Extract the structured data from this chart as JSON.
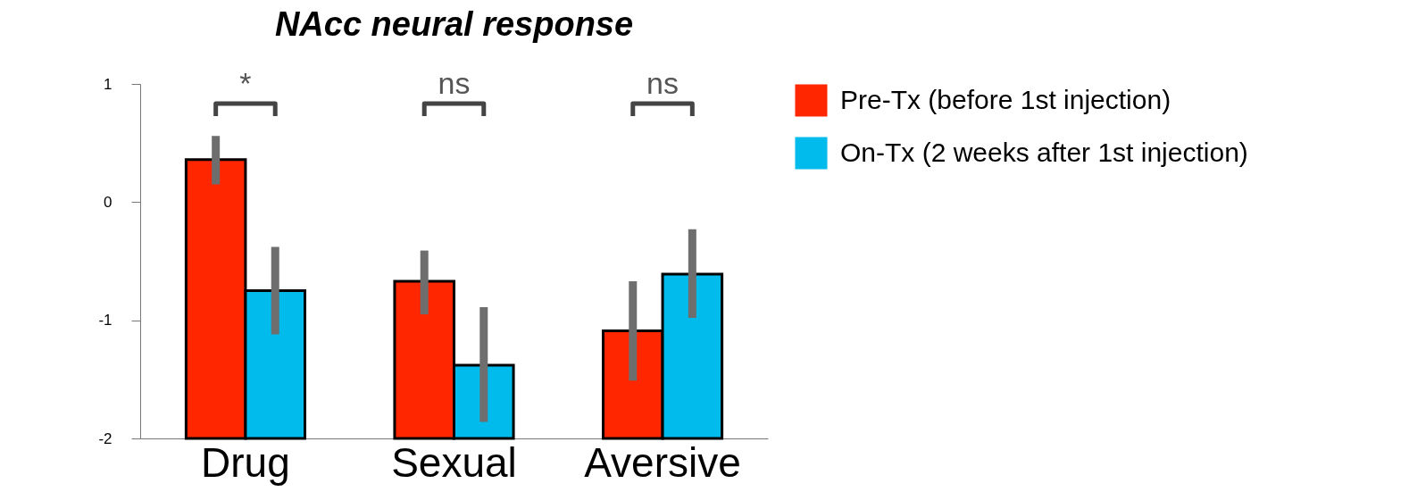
{
  "chart_data": {
    "type": "bar",
    "title": "NAcc neural response",
    "categories": [
      "Drug",
      "Sexual",
      "Aversive"
    ],
    "series": [
      {
        "name": "Pre-Tx (before 1st injection)",
        "color": "#ff2600",
        "base": [
          -2,
          -2,
          -2
        ],
        "values": [
          2.36,
          1.33,
          0.91
        ],
        "errors": [
          [
            0.15,
            0.56
          ],
          [
            -0.95,
            -0.41
          ],
          [
            -1.51,
            -0.67
          ]
        ]
      },
      {
        "name": "On-Tx (2 weeks after 1st injection)",
        "color": "#00bbeb",
        "base": [
          -2,
          -2,
          -2
        ],
        "values": [
          1.25,
          0.62,
          1.39
        ],
        "errors": [
          [
            -1.12,
            -0.38
          ],
          [
            -1.86,
            -0.89
          ],
          [
            -0.98,
            -0.23
          ]
        ]
      }
    ],
    "ylim": [
      -2,
      1
    ],
    "yticks": [
      -2,
      -1,
      0,
      1
    ],
    "grid": false,
    "legend": "right",
    "annotations": [
      "*",
      "ns",
      "ns"
    ]
  }
}
